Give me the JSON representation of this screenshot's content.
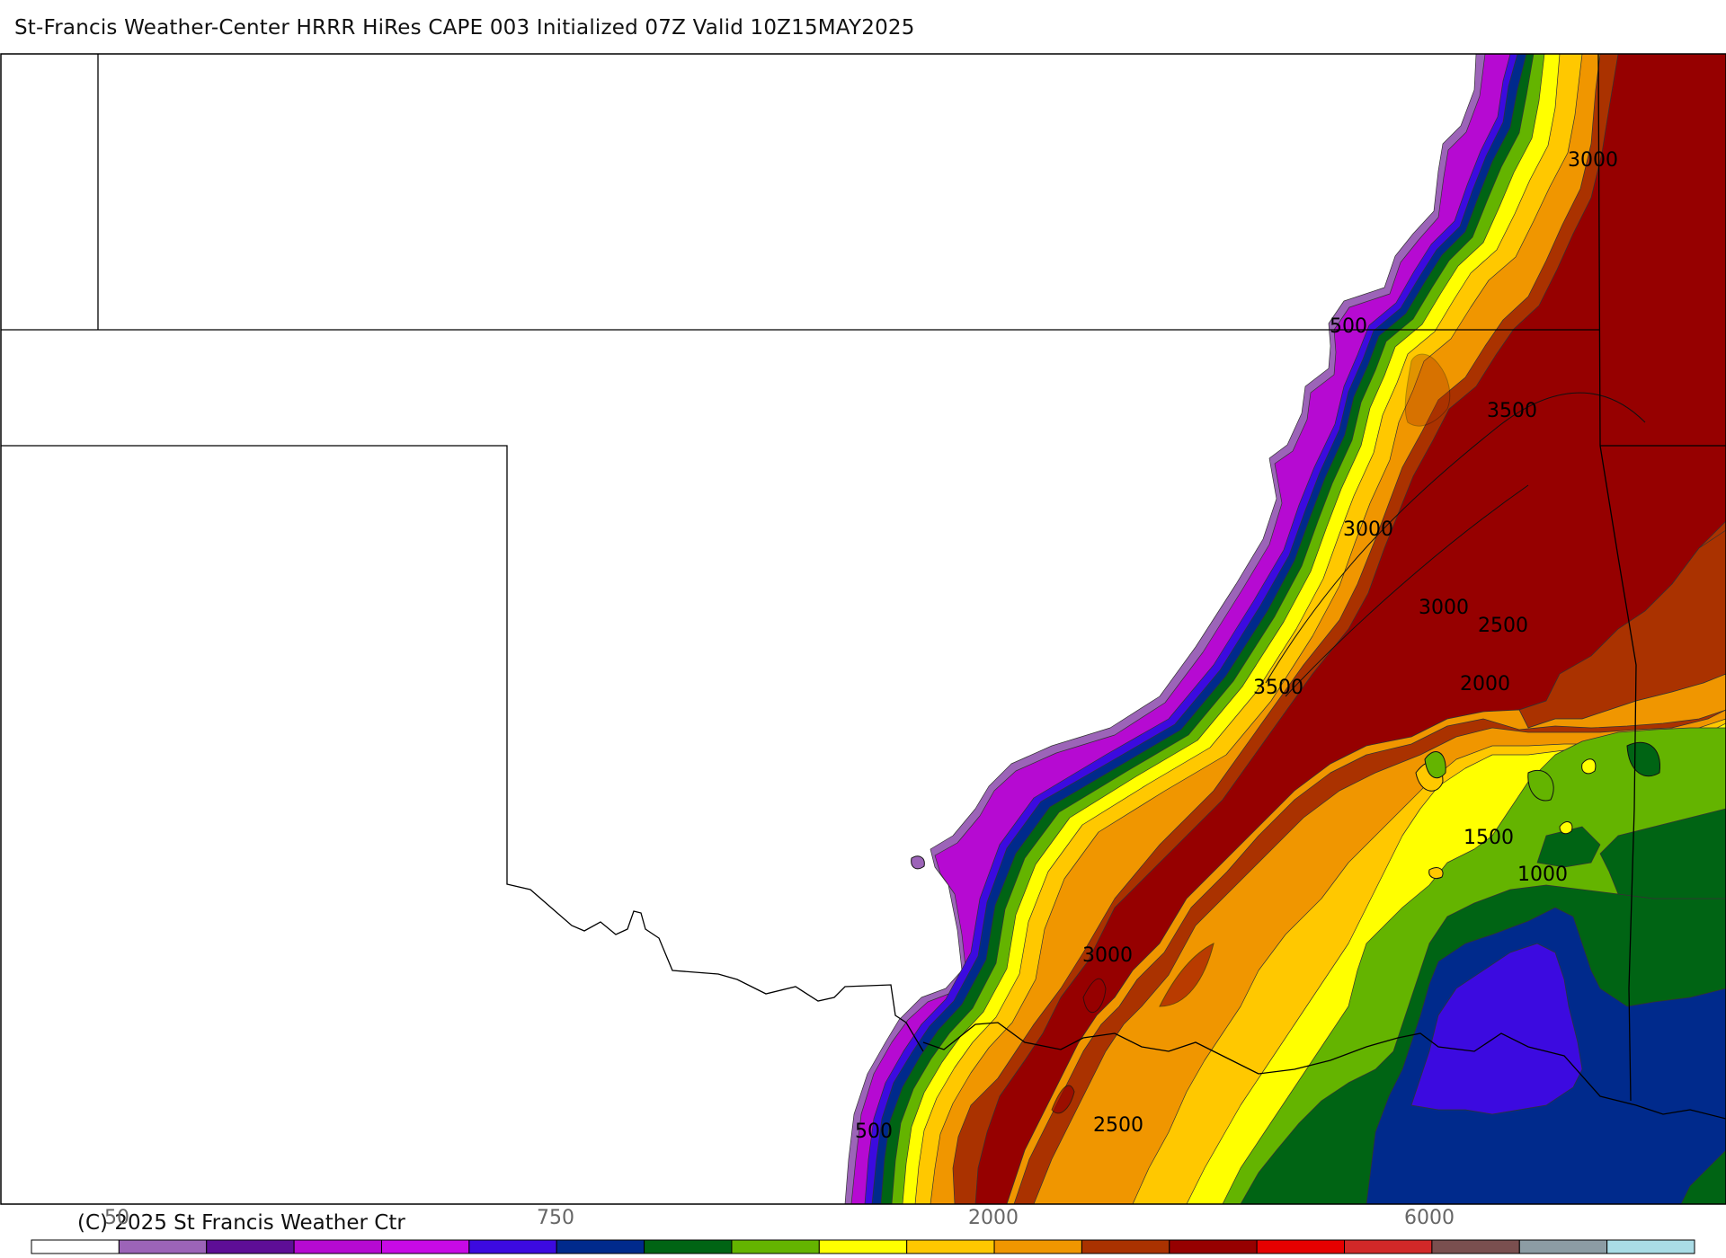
{
  "header": {
    "title": "St-Francis Weather-Center HRRR HiRes CAPE  003 Initialized  07Z Valid 10Z15MAY2025"
  },
  "map": {
    "contour_labels": [
      {
        "text": "3000"
      },
      {
        "text": "500"
      },
      {
        "text": "3500"
      },
      {
        "text": "3000"
      },
      {
        "text": "3000"
      },
      {
        "text": "2500"
      },
      {
        "text": "2000"
      },
      {
        "text": "3500"
      },
      {
        "text": "1500"
      },
      {
        "text": "1000"
      },
      {
        "text": "3000"
      },
      {
        "text": "2500"
      },
      {
        "text": "500"
      }
    ],
    "colors": {
      "c50": "#9c64b8",
      "c100": "#5e0e96",
      "c250": "#b60ad2",
      "c500": "#c80ae6",
      "c750": "#3c0ae0",
      "c1000": "#002a8c",
      "c1250": "#006414",
      "c1500": "#64b400",
      "c1750": "#ffff00",
      "c2000": "#ffc800",
      "c2500": "#f09600",
      "c3000": "#aa3200",
      "c3500": "#960000",
      "c4000": "#e60000",
      "c5000": "#d22828",
      "c6000": "#7a4f4f",
      "c7000": "#8c9ca4",
      "c8000": "#aadce6"
    }
  },
  "colorbar": {
    "colors": [
      "#ffffff",
      "#9c64b8",
      "#5e0e96",
      "#b60ad2",
      "#c80ae6",
      "#3c0ae0",
      "#002a8c",
      "#006414",
      "#64b400",
      "#ffff00",
      "#ffc800",
      "#f09600",
      "#aa3200",
      "#960000",
      "#e60000",
      "#d22828",
      "#7a4f4f",
      "#8c9ca4",
      "#aadce6"
    ],
    "labels": [
      {
        "text": "50"
      },
      {
        "text": "750"
      },
      {
        "text": "2000"
      },
      {
        "text": "6000"
      }
    ]
  },
  "footer": {
    "copyright": "(C) 2025 St Francis Weather Ctr"
  }
}
